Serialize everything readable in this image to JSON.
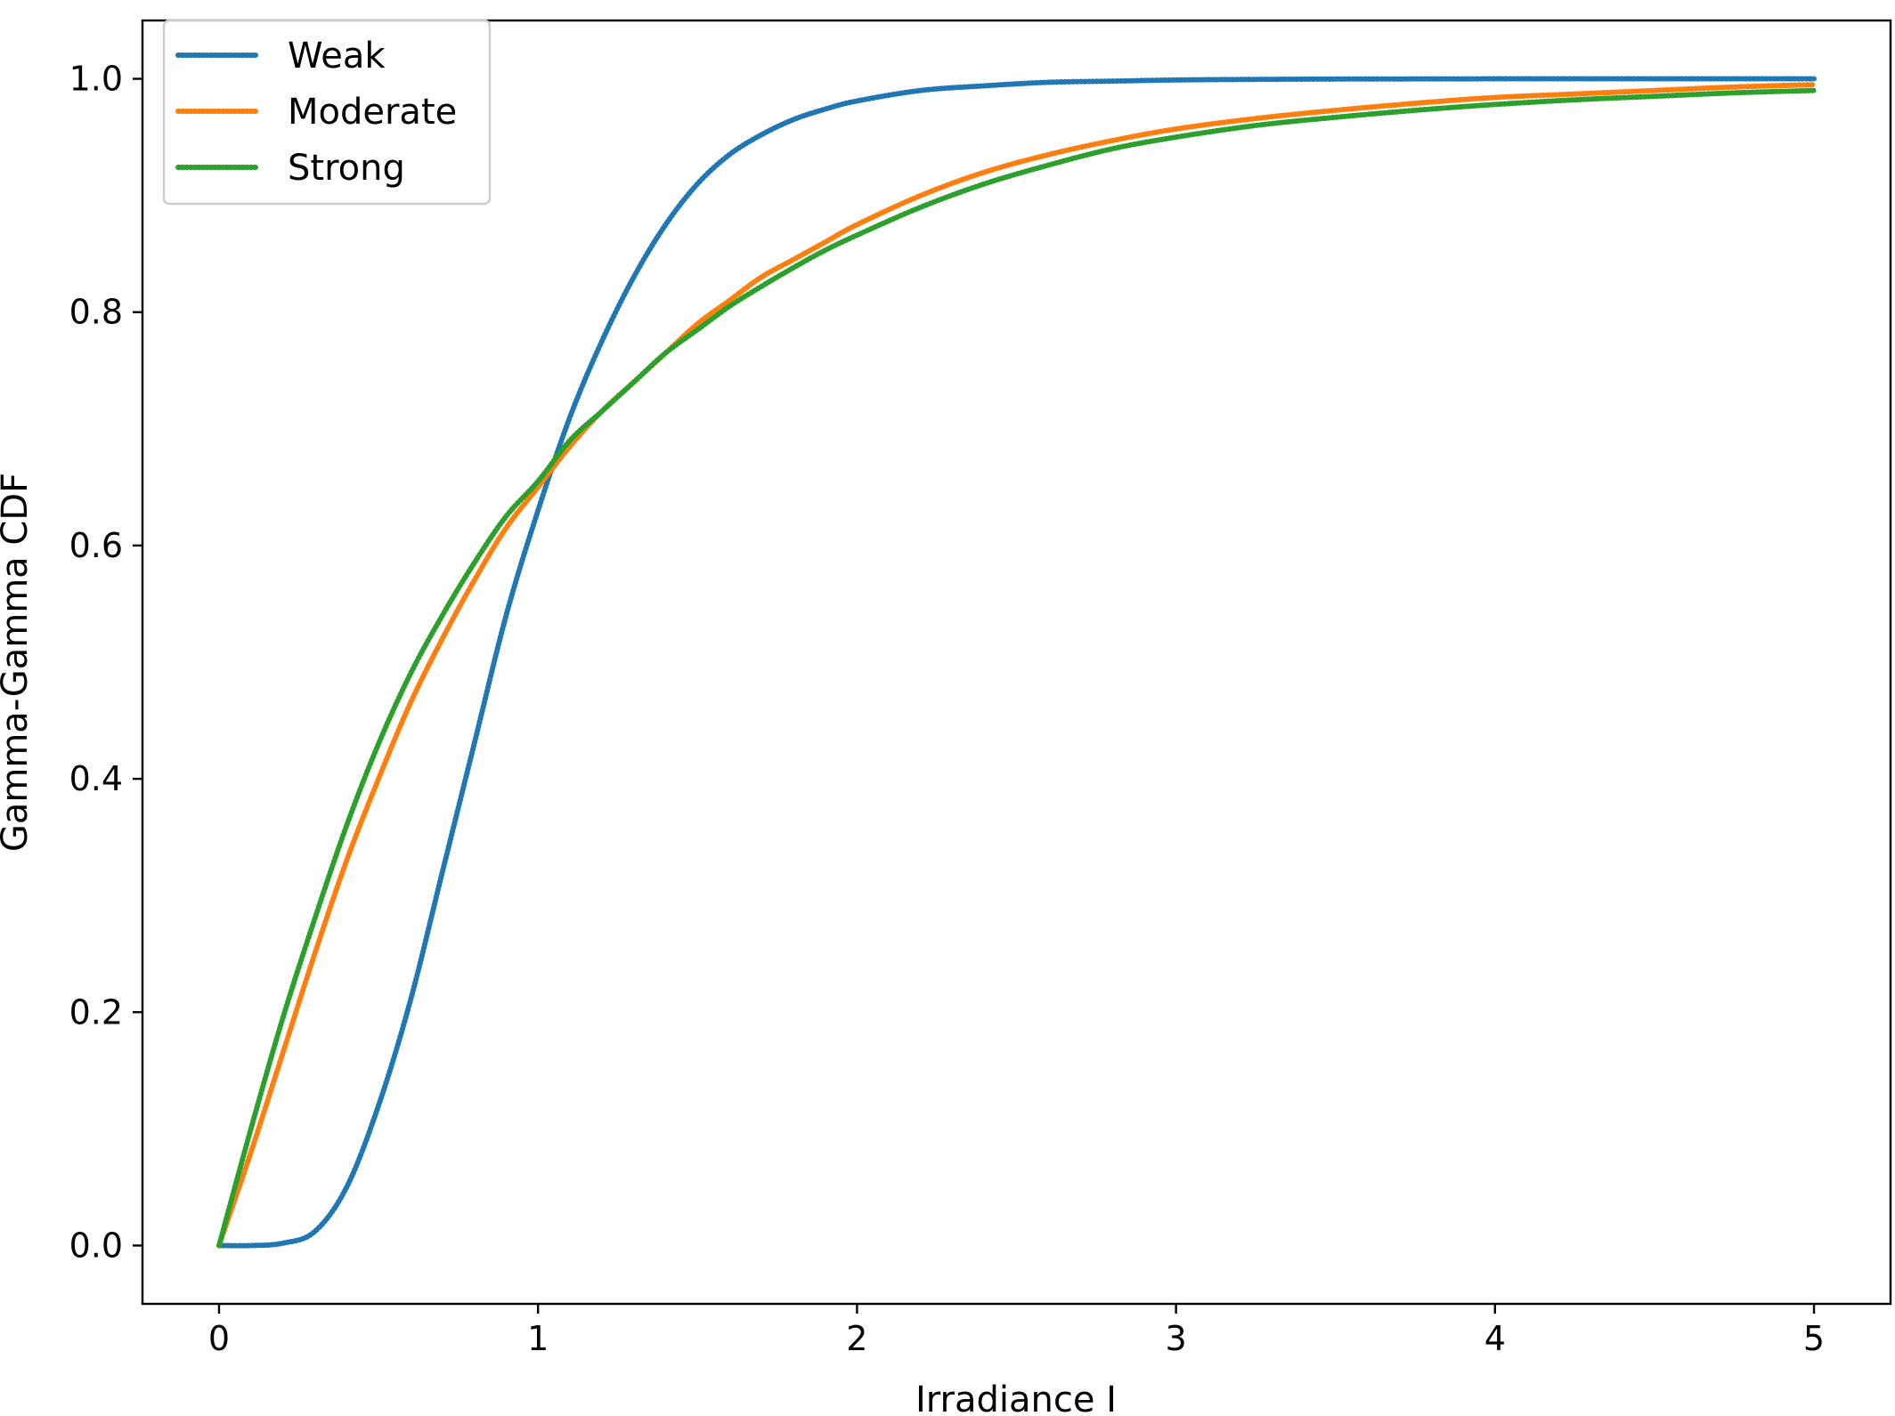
{
  "chart_data": {
    "type": "line",
    "xlabel": "Irradiance I",
    "ylabel": "Gamma-Gamma CDF",
    "xlim": [
      -0.24,
      5.24
    ],
    "ylim": [
      -0.05,
      1.05
    ],
    "xticks": [
      0,
      1,
      2,
      3,
      4,
      5
    ],
    "xtick_labels": [
      "0",
      "1",
      "2",
      "3",
      "4",
      "5"
    ],
    "yticks": [
      0.0,
      0.2,
      0.4,
      0.6,
      0.8,
      1.0
    ],
    "ytick_labels": [
      "0.0",
      "0.2",
      "0.4",
      "0.6",
      "0.8",
      "1.0"
    ],
    "grid": false,
    "legend_position": "top-left",
    "line_style": "dotted",
    "x": [
      0,
      0.1,
      0.2,
      0.3,
      0.4,
      0.5,
      0.6,
      0.7,
      0.8,
      0.9,
      1.0,
      1.1,
      1.2,
      1.3,
      1.4,
      1.5,
      1.6,
      1.7,
      1.8,
      1.9,
      2.0,
      2.2,
      2.4,
      2.6,
      2.8,
      3.0,
      3.25,
      3.5,
      3.75,
      4.0,
      4.25,
      4.5,
      4.75,
      5.0
    ],
    "series": [
      {
        "name": "Weak",
        "color": "#1f77b4",
        "values": [
          0.0,
          0.0,
          0.002,
          0.012,
          0.05,
          0.12,
          0.21,
          0.32,
          0.43,
          0.54,
          0.63,
          0.71,
          0.775,
          0.83,
          0.875,
          0.91,
          0.935,
          0.952,
          0.965,
          0.974,
          0.981,
          0.99,
          0.994,
          0.997,
          0.998,
          0.999,
          0.9995,
          0.9998,
          0.9999,
          1.0,
          1.0,
          1.0,
          1.0,
          1.0
        ]
      },
      {
        "name": "Moderate",
        "color": "#ff7f0e",
        "values": [
          0.0,
          0.08,
          0.165,
          0.25,
          0.33,
          0.4,
          0.465,
          0.52,
          0.57,
          0.615,
          0.65,
          0.685,
          0.715,
          0.74,
          0.765,
          0.79,
          0.81,
          0.83,
          0.845,
          0.86,
          0.875,
          0.9,
          0.92,
          0.935,
          0.947,
          0.957,
          0.966,
          0.973,
          0.979,
          0.984,
          0.987,
          0.99,
          0.993,
          0.995
        ]
      },
      {
        "name": "Strong",
        "color": "#2ca02c",
        "values": [
          0.0,
          0.1,
          0.195,
          0.28,
          0.36,
          0.43,
          0.49,
          0.54,
          0.585,
          0.625,
          0.655,
          0.69,
          0.715,
          0.74,
          0.765,
          0.785,
          0.805,
          0.822,
          0.838,
          0.853,
          0.866,
          0.89,
          0.91,
          0.926,
          0.94,
          0.95,
          0.96,
          0.967,
          0.973,
          0.978,
          0.982,
          0.985,
          0.988,
          0.99
        ]
      }
    ]
  }
}
